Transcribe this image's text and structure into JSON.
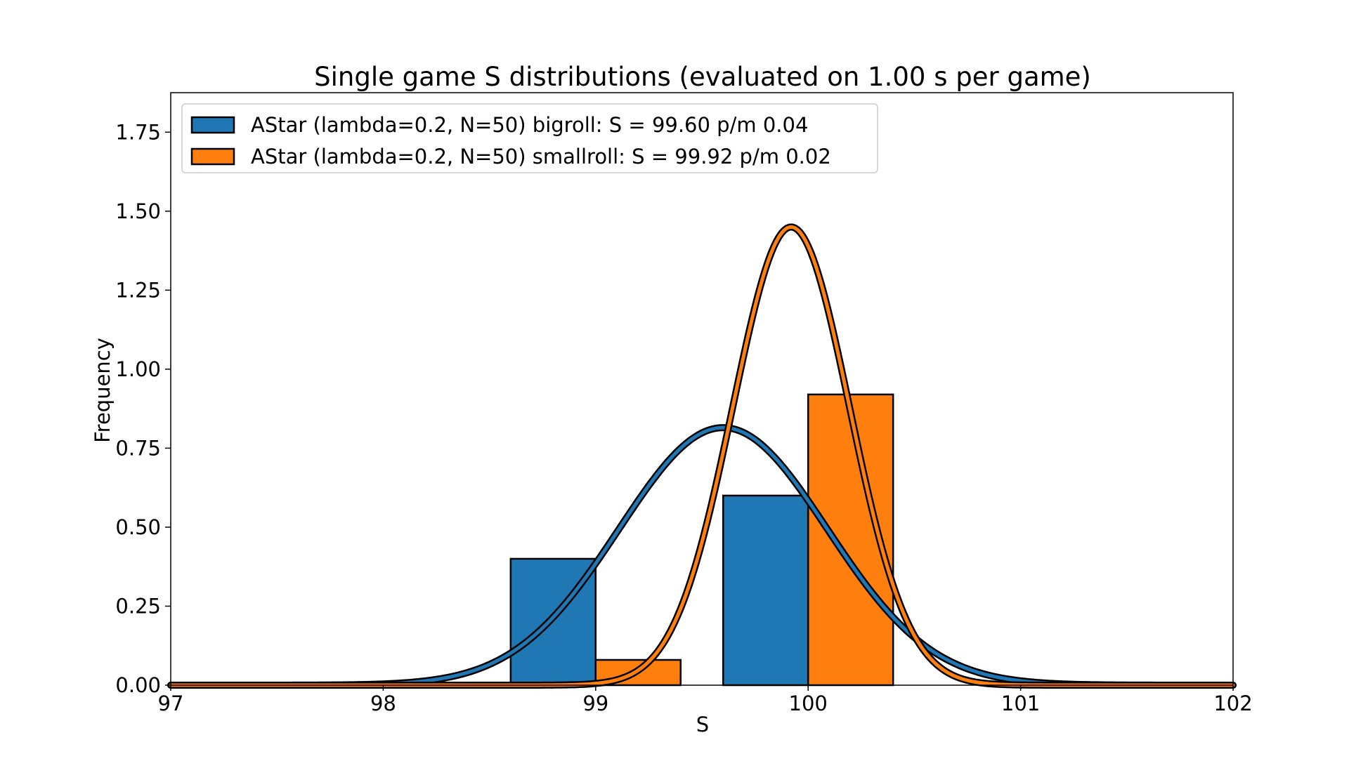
{
  "chart_data": {
    "type": "bar",
    "title": "Single game S distributions (evaluated on 1.00 s per game)",
    "xlabel": "S",
    "ylabel": "Frequency",
    "xlim": [
      97,
      102
    ],
    "ylim": [
      0,
      1.875
    ],
    "xticks": [
      97,
      98,
      99,
      100,
      101,
      102
    ],
    "yticks": [
      0.0,
      0.25,
      0.5,
      0.75,
      1.0,
      1.25,
      1.5,
      1.75
    ],
    "xtick_labels": [
      "97",
      "98",
      "99",
      "100",
      "101",
      "102"
    ],
    "ytick_labels": [
      "0.00",
      "0.25",
      "0.50",
      "0.75",
      "1.00",
      "1.25",
      "1.50",
      "1.75"
    ],
    "legend_location": "upper-left",
    "grid": false,
    "series": [
      {
        "name": "AStar (lambda=0.2, N=50) bigroll: S = 99.60 p/m 0.04",
        "color": "#1f77b4",
        "histogram": {
          "bins": [
            {
              "x0": 98.6,
              "x1": 99.0,
              "height": 0.4
            },
            {
              "x0": 99.6,
              "x1": 100.0,
              "height": 0.6
            }
          ]
        },
        "fit_curve": {
          "kind": "gaussian",
          "mean": 99.6,
          "sigma": 0.49,
          "peak": 0.815
        }
      },
      {
        "name": "AStar (lambda=0.2, N=50) smallroll: S = 99.92 p/m 0.02",
        "color": "#ff7f0e",
        "histogram": {
          "bins": [
            {
              "x0": 99.0,
              "x1": 99.4,
              "height": 0.08
            },
            {
              "x0": 100.0,
              "x1": 100.4,
              "height": 0.92
            }
          ]
        },
        "fit_curve": {
          "kind": "gaussian",
          "mean": 99.92,
          "sigma": 0.275,
          "peak": 1.45
        }
      }
    ]
  }
}
